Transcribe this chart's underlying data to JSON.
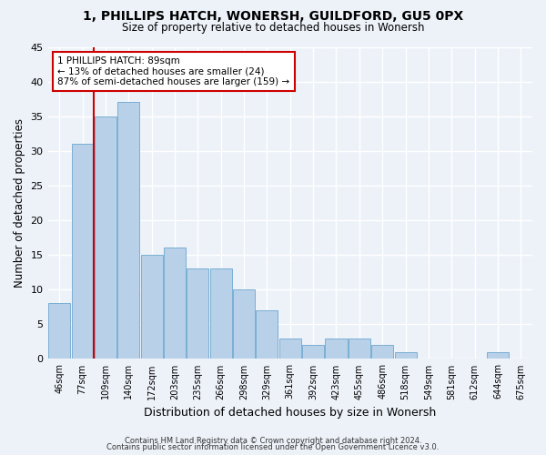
{
  "title1": "1, PHILLIPS HATCH, WONERSH, GUILDFORD, GU5 0PX",
  "title2": "Size of property relative to detached houses in Wonersh",
  "xlabel": "Distribution of detached houses by size in Wonersh",
  "ylabel": "Number of detached properties",
  "categories": [
    "46sqm",
    "77sqm",
    "109sqm",
    "140sqm",
    "172sqm",
    "203sqm",
    "235sqm",
    "266sqm",
    "298sqm",
    "329sqm",
    "361sqm",
    "392sqm",
    "423sqm",
    "455sqm",
    "486sqm",
    "518sqm",
    "549sqm",
    "581sqm",
    "612sqm",
    "644sqm",
    "675sqm"
  ],
  "values": [
    8,
    31,
    35,
    37,
    15,
    16,
    13,
    13,
    10,
    7,
    3,
    2,
    3,
    3,
    2,
    1,
    0,
    0,
    0,
    1,
    0
  ],
  "bar_color": "#b8d0e8",
  "bar_edge_color": "#7aafd4",
  "subject_line_color": "#cc0000",
  "annotation_line1": "1 PHILLIPS HATCH: 89sqm",
  "annotation_line2": "← 13% of detached houses are smaller (24)",
  "annotation_line3": "87% of semi-detached houses are larger (159) →",
  "annotation_box_color": "#ffffff",
  "annotation_box_edge": "#cc0000",
  "ylim": [
    0,
    45
  ],
  "yticks": [
    0,
    5,
    10,
    15,
    20,
    25,
    30,
    35,
    40,
    45
  ],
  "footer1": "Contains HM Land Registry data © Crown copyright and database right 2024.",
  "footer2": "Contains public sector information licensed under the Open Government Licence v3.0.",
  "background_color": "#edf2f9",
  "grid_color": "#ffffff"
}
